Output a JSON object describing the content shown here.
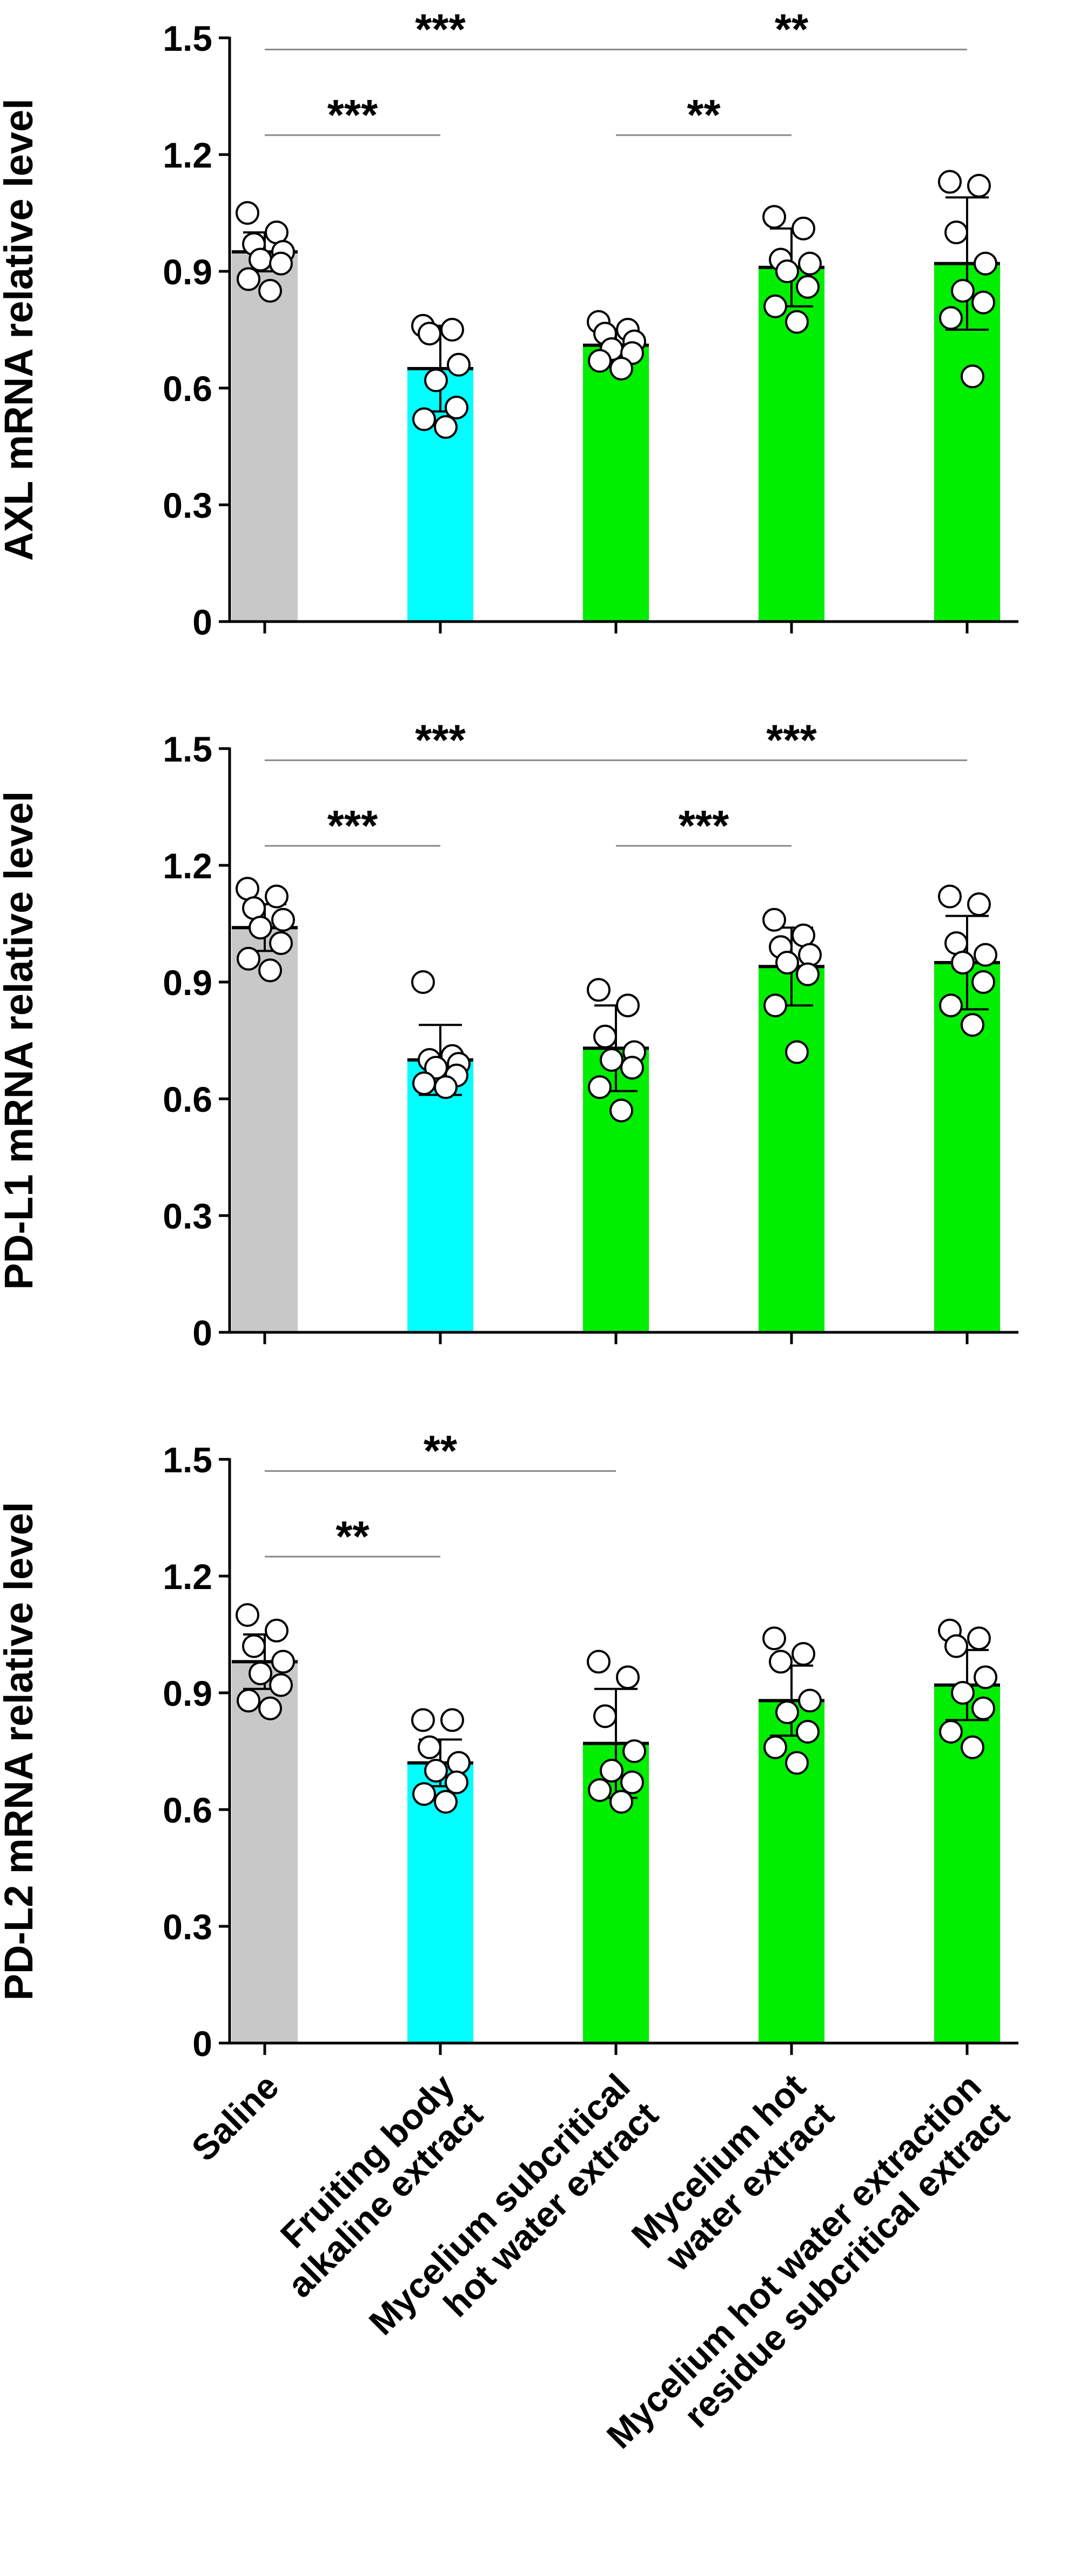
{
  "colors": {
    "saline": "#c8c8c8",
    "alkaline": "#00ffff",
    "hotwater": "#00ee00",
    "axis": "#000000",
    "bracket": "#888888",
    "point_fill": "#ffffff",
    "point_stroke": "#000000"
  },
  "category_labels": [
    {
      "lines": [
        "Saline"
      ]
    },
    {
      "lines": [
        "Fruiting body",
        "alkaline extract"
      ]
    },
    {
      "lines": [
        "Mycelium subcritical",
        "hot water extract"
      ]
    },
    {
      "lines": [
        "Mycelium hot",
        "water extract"
      ]
    },
    {
      "lines": [
        "Mycelium hot water extraction",
        "residue subcritical extract"
      ]
    }
  ],
  "chart_data": [
    {
      "type": "bar",
      "ylabel": "AXL mRNA relative level",
      "ylim": [
        0,
        1.5
      ],
      "yticks": [
        "0",
        "0.3",
        "0.6",
        "0.9",
        "1.2",
        "1.5"
      ],
      "categories": [
        "Saline",
        "Fruiting body alkaline extract",
        "Mycelium subcritical hot water extract",
        "Mycelium hot water extract",
        "Mycelium hot water extraction residue subcritical extract"
      ],
      "values": [
        0.95,
        0.65,
        0.71,
        0.91,
        0.92
      ],
      "errors": [
        0.05,
        0.11,
        0.04,
        0.1,
        0.17
      ],
      "points": [
        [
          1.05,
          1.0,
          0.97,
          0.95,
          0.93,
          0.92,
          0.88,
          0.85
        ],
        [
          0.76,
          0.75,
          0.74,
          0.66,
          0.62,
          0.55,
          0.52,
          0.5
        ],
        [
          0.77,
          0.75,
          0.74,
          0.72,
          0.7,
          0.69,
          0.67,
          0.65
        ],
        [
          1.04,
          1.01,
          0.93,
          0.92,
          0.9,
          0.86,
          0.81,
          0.77
        ],
        [
          1.13,
          1.12,
          1.0,
          0.92,
          0.85,
          0.82,
          0.78,
          0.63
        ]
      ],
      "significance": [
        {
          "from": 0,
          "to": 1,
          "label": "***",
          "y": 1.25
        },
        {
          "from": 0,
          "to": 2,
          "label": "***",
          "y": 1.47
        },
        {
          "from": 2,
          "to": 3,
          "label": "**",
          "y": 1.25
        },
        {
          "from": 2,
          "to": 4,
          "label": "**",
          "y": 1.47
        }
      ]
    },
    {
      "type": "bar",
      "ylabel": "PD-L1 mRNA relative level",
      "ylim": [
        0,
        1.5
      ],
      "yticks": [
        "0",
        "0.3",
        "0.6",
        "0.9",
        "1.2",
        "1.5"
      ],
      "categories": [
        "Saline",
        "Fruiting body alkaline extract",
        "Mycelium subcritical hot water extract",
        "Mycelium hot water extract",
        "Mycelium hot water extraction residue subcritical extract"
      ],
      "values": [
        1.04,
        0.7,
        0.73,
        0.94,
        0.95
      ],
      "errors": [
        0.06,
        0.09,
        0.11,
        0.1,
        0.12
      ],
      "points": [
        [
          1.14,
          1.12,
          1.09,
          1.06,
          1.04,
          1.0,
          0.96,
          0.93
        ],
        [
          0.9,
          0.71,
          0.7,
          0.69,
          0.68,
          0.66,
          0.64,
          0.63
        ],
        [
          0.88,
          0.84,
          0.76,
          0.72,
          0.7,
          0.68,
          0.63,
          0.57
        ],
        [
          1.06,
          1.02,
          0.99,
          0.97,
          0.95,
          0.92,
          0.84,
          0.72
        ],
        [
          1.12,
          1.1,
          1.0,
          0.97,
          0.95,
          0.9,
          0.84,
          0.79
        ]
      ],
      "significance": [
        {
          "from": 0,
          "to": 1,
          "label": "***",
          "y": 1.25
        },
        {
          "from": 0,
          "to": 2,
          "label": "***",
          "y": 1.47
        },
        {
          "from": 2,
          "to": 3,
          "label": "***",
          "y": 1.25
        },
        {
          "from": 2,
          "to": 4,
          "label": "***",
          "y": 1.47
        }
      ]
    },
    {
      "type": "bar",
      "ylabel": "PD-L2 mRNA relative level",
      "ylim": [
        0,
        1.5
      ],
      "yticks": [
        "0",
        "0.3",
        "0.6",
        "0.9",
        "1.2",
        "1.5"
      ],
      "categories": [
        "Saline",
        "Fruiting body alkaline extract",
        "Mycelium subcritical hot water extract",
        "Mycelium hot water extract",
        "Mycelium hot water extraction residue subcritical extract"
      ],
      "values": [
        0.98,
        0.72,
        0.77,
        0.88,
        0.92
      ],
      "errors": [
        0.07,
        0.06,
        0.14,
        0.09,
        0.09
      ],
      "points": [
        [
          1.1,
          1.06,
          1.02,
          0.98,
          0.95,
          0.92,
          0.88,
          0.86
        ],
        [
          0.83,
          0.83,
          0.76,
          0.72,
          0.7,
          0.67,
          0.64,
          0.62
        ],
        [
          0.98,
          0.94,
          0.84,
          0.75,
          0.7,
          0.67,
          0.65,
          0.62
        ],
        [
          1.04,
          1.0,
          0.98,
          0.88,
          0.85,
          0.8,
          0.76,
          0.72
        ],
        [
          1.06,
          1.04,
          1.02,
          0.94,
          0.9,
          0.86,
          0.8,
          0.76
        ]
      ],
      "significance": [
        {
          "from": 0,
          "to": 1,
          "label": "**",
          "y": 1.25
        },
        {
          "from": 0,
          "to": 2,
          "label": "**",
          "y": 1.47
        }
      ]
    }
  ]
}
